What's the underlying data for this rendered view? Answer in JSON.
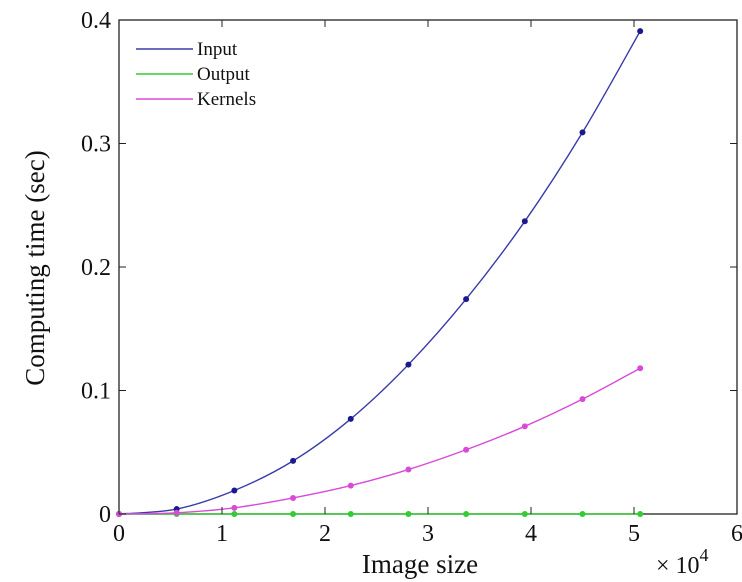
{
  "chart_data": {
    "type": "line",
    "xlabel": "Image size",
    "ylabel": "Computing time (sec)",
    "x_multiplier_label": "× 10",
    "x_multiplier_exp": "4",
    "xlim": [
      0,
      6
    ],
    "ylim": [
      0,
      0.4
    ],
    "x_ticks": [
      "0",
      "1",
      "2",
      "3",
      "4",
      "5",
      "6"
    ],
    "y_ticks": [
      "0",
      "0.1",
      "0.2",
      "0.3",
      "0.4"
    ],
    "x_tick_values": [
      0,
      1,
      2,
      3,
      4,
      5,
      6
    ],
    "y_tick_values": [
      0,
      0.1,
      0.2,
      0.3,
      0.4
    ],
    "x": [
      0,
      0.56,
      1.12,
      1.69,
      2.25,
      2.81,
      3.37,
      3.94,
      4.5,
      5.06
    ],
    "series": [
      {
        "name": "Input",
        "color": "#3a3aaa",
        "marker_color": "#1a1a8c",
        "values": [
          0,
          0.004,
          0.019,
          0.043,
          0.077,
          0.121,
          0.174,
          0.237,
          0.309,
          0.391
        ]
      },
      {
        "name": "Output",
        "color": "#33cc33",
        "marker_color": "#33cc33",
        "values": [
          0,
          0,
          0,
          0,
          0,
          0,
          0,
          0,
          0,
          0
        ]
      },
      {
        "name": "Kernels",
        "color": "#d94ad9",
        "marker_color": "#d94ad9",
        "values": [
          0,
          0.001,
          0.005,
          0.013,
          0.023,
          0.036,
          0.052,
          0.071,
          0.093,
          0.118
        ]
      }
    ],
    "legend_position": "top-left",
    "grid": false
  }
}
